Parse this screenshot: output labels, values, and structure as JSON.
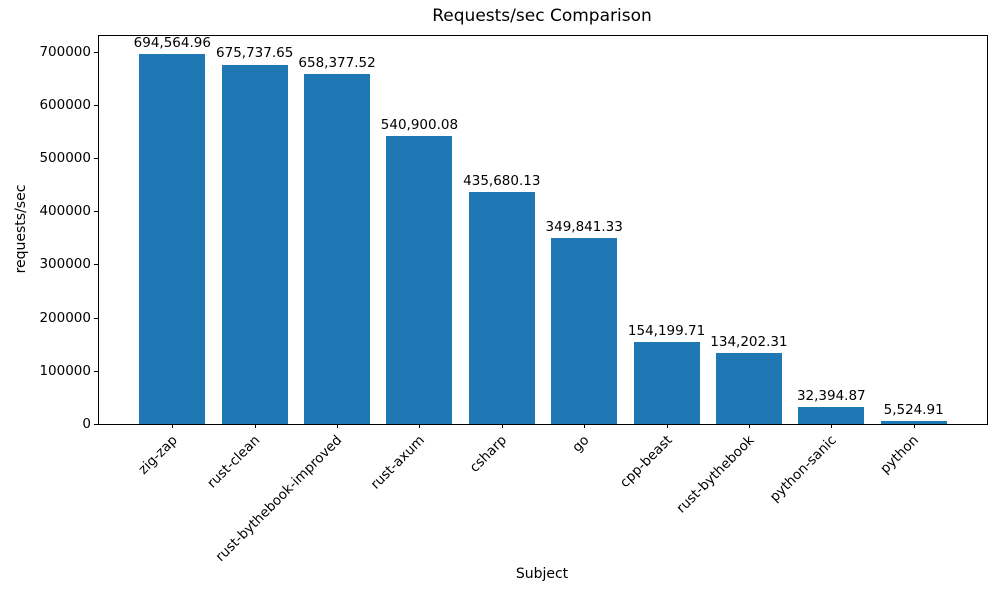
{
  "chart_data": {
    "type": "bar",
    "title": "Requests/sec Comparison",
    "xlabel": "Subject",
    "ylabel": "requests/sec",
    "categories": [
      "zig-zap",
      "rust-clean",
      "rust-bythebook-improved",
      "rust-axum",
      "csharp",
      "go",
      "cpp-beast",
      "rust-bythebook",
      "python-sanic",
      "python"
    ],
    "values": [
      694564.96,
      675737.65,
      658377.52,
      540900.08,
      435680.13,
      349841.33,
      154199.71,
      134202.31,
      32394.87,
      5524.91
    ],
    "value_labels": [
      "694,564.96",
      "675,737.65",
      "658,377.52",
      "540,900.08",
      "435,680.13",
      "349,841.33",
      "154,199.71",
      "134,202.31",
      "32,394.87",
      "5,524.91"
    ],
    "yticks": [
      0,
      100000,
      200000,
      300000,
      400000,
      500000,
      600000,
      700000
    ],
    "ylim": [
      0,
      729293
    ],
    "bar_color": "#1f77b4",
    "grid": false,
    "legend_position": "none",
    "x_tick_rotation": 45
  }
}
